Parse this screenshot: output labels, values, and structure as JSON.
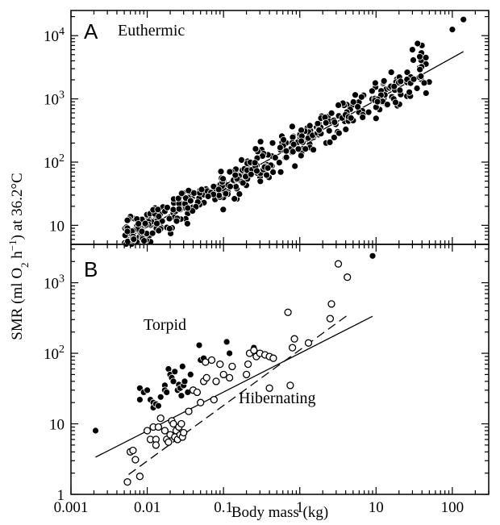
{
  "chart_data": [
    {
      "type": "scatter",
      "panel": "A",
      "annotations": [
        "Euthermic"
      ],
      "xscale": "log",
      "yscale": "log",
      "xlim": [
        0.001,
        300
      ],
      "ylim": [
        5,
        25000
      ],
      "xticks": [
        0.001,
        0.01,
        0.1,
        1,
        10,
        100
      ],
      "yticks": [
        {
          "value": 10,
          "label": "10",
          "base": "",
          "exp": ""
        },
        {
          "value": 100,
          "label": "10²",
          "base": "10",
          "exp": "2"
        },
        {
          "value": 1000,
          "label": "10³",
          "base": "10",
          "exp": "3"
        },
        {
          "value": 10000,
          "label": "10⁴",
          "base": "10",
          "exp": "4"
        }
      ],
      "series": [
        {
          "marker": "filled-circle",
          "color": "#000000",
          "generated": {
            "seed": 7,
            "count": 420,
            "xlogmin": -2.3,
            "xlogmax": 1.7,
            "intercept": 2.31,
            "slope": 0.67,
            "scatter": 0.14
          }
        }
      ],
      "extra_points": [
        [
          100,
          12500
        ],
        [
          140,
          18000
        ],
        [
          45,
          4500
        ],
        [
          40,
          7000
        ],
        [
          35,
          7500
        ],
        [
          30,
          6000
        ],
        [
          0.0055,
          9
        ],
        [
          0.0055,
          8
        ],
        [
          0.0085,
          8
        ],
        [
          0.0055,
          12
        ]
      ],
      "fit": {
        "type": "power",
        "intercept": 2.31,
        "slope": 0.67,
        "x_range": [
          0.0052,
          140
        ],
        "style": "solid"
      }
    },
    {
      "type": "scatter",
      "panel": "B",
      "xscale": "log",
      "yscale": "log",
      "xlim": [
        0.001,
        300
      ],
      "ylim": [
        1,
        3500
      ],
      "xticks": [
        0.001,
        0.01,
        0.1,
        1,
        10,
        100
      ],
      "yticks": [
        {
          "value": 1,
          "label": "1",
          "base": "",
          "exp": ""
        },
        {
          "value": 10,
          "label": "10",
          "base": "",
          "exp": ""
        },
        {
          "value": 100,
          "label": "10²",
          "base": "10",
          "exp": "2"
        },
        {
          "value": 1000,
          "label": "10³",
          "base": "10",
          "exp": "3"
        }
      ],
      "series": [
        {
          "name": "Torpid",
          "marker": "filled-circle",
          "color": "#000000",
          "points": [
            [
              0.0021,
              8
            ],
            [
              0.008,
              32
            ],
            [
              0.008,
              22
            ],
            [
              0.009,
              28
            ],
            [
              0.01,
              30
            ],
            [
              0.011,
              22
            ],
            [
              0.012,
              20
            ],
            [
              0.012,
              17
            ],
            [
              0.013,
              19
            ],
            [
              0.014,
              18
            ],
            [
              0.015,
              24
            ],
            [
              0.017,
              35
            ],
            [
              0.017,
              30
            ],
            [
              0.018,
              28
            ],
            [
              0.019,
              60
            ],
            [
              0.02,
              50
            ],
            [
              0.021,
              45
            ],
            [
              0.022,
              40
            ],
            [
              0.023,
              55
            ],
            [
              0.025,
              30
            ],
            [
              0.026,
              36
            ],
            [
              0.027,
              32
            ],
            [
              0.028,
              25
            ],
            [
              0.029,
              65
            ],
            [
              0.03,
              35
            ],
            [
              0.031,
              40
            ],
            [
              0.034,
              28
            ],
            [
              0.037,
              50
            ],
            [
              0.048,
              130
            ],
            [
              0.05,
              80
            ],
            [
              0.055,
              85
            ],
            [
              0.11,
              145
            ],
            [
              0.12,
              100
            ],
            [
              0.25,
              120
            ],
            [
              0.28,
              95
            ],
            [
              9,
              2400
            ]
          ]
        },
        {
          "name": "Hibernating",
          "marker": "open-circle",
          "color": "#000000",
          "points": [
            [
              0.0055,
              1.5
            ],
            [
              0.006,
              4
            ],
            [
              0.0065,
              4.2
            ],
            [
              0.007,
              3.1
            ],
            [
              0.008,
              1.8
            ],
            [
              0.01,
              8
            ],
            [
              0.011,
              6
            ],
            [
              0.012,
              9
            ],
            [
              0.013,
              6
            ],
            [
              0.013,
              5
            ],
            [
              0.014,
              9
            ],
            [
              0.015,
              12
            ],
            [
              0.017,
              8
            ],
            [
              0.018,
              6
            ],
            [
              0.019,
              5.5
            ],
            [
              0.02,
              7
            ],
            [
              0.021,
              11
            ],
            [
              0.022,
              10
            ],
            [
              0.023,
              6.5
            ],
            [
              0.024,
              8
            ],
            [
              0.025,
              6
            ],
            [
              0.026,
              9
            ],
            [
              0.027,
              7
            ],
            [
              0.028,
              10
            ],
            [
              0.029,
              6.5
            ],
            [
              0.03,
              7.5
            ],
            [
              0.035,
              15
            ],
            [
              0.04,
              30
            ],
            [
              0.045,
              28
            ],
            [
              0.05,
              20
            ],
            [
              0.055,
              40
            ],
            [
              0.058,
              75
            ],
            [
              0.06,
              45
            ],
            [
              0.07,
              80
            ],
            [
              0.075,
              22
            ],
            [
              0.08,
              40
            ],
            [
              0.09,
              70
            ],
            [
              0.1,
              50
            ],
            [
              0.12,
              45
            ],
            [
              0.13,
              65
            ],
            [
              0.2,
              50
            ],
            [
              0.21,
              70
            ],
            [
              0.22,
              100
            ],
            [
              0.25,
              110
            ],
            [
              0.27,
              90
            ],
            [
              0.3,
              100
            ],
            [
              0.35,
              95
            ],
            [
              0.4,
              90
            ],
            [
              0.45,
              85
            ],
            [
              0.4,
              32
            ],
            [
              0.7,
              380
            ],
            [
              0.75,
              35
            ],
            [
              0.8,
              120
            ],
            [
              0.85,
              160
            ],
            [
              1.3,
              140
            ],
            [
              2.5,
              310
            ],
            [
              2.6,
              500
            ],
            [
              3.2,
              1850
            ],
            [
              4.2,
              1200
            ]
          ]
        }
      ],
      "annotations": [
        "Torpid",
        "Hibernating"
      ],
      "fits": [
        {
          "series": "Torpid",
          "type": "power",
          "intercept": 2.0,
          "slope": 0.55,
          "x_range": [
            0.0021,
            9
          ],
          "style": "solid"
        },
        {
          "series": "Hibernating",
          "type": "power",
          "intercept": 2.047,
          "slope": 0.787,
          "x_range": [
            0.0057,
            4.3
          ],
          "style": "dashed"
        }
      ]
    }
  ],
  "labels": {
    "panel_a_letter": "A",
    "panel_a_note": "Euthermic",
    "panel_b_letter": "B",
    "torpid": "Torpid",
    "hibernating": "Hibernating",
    "xlabel": "Body mass (kg)",
    "ylabel_pre": "SMR (ml O",
    "ylabel_sub": "2",
    "ylabel_mid": " h",
    "ylabel_sup": "−1",
    "ylabel_post": ") at 36.2°C"
  }
}
